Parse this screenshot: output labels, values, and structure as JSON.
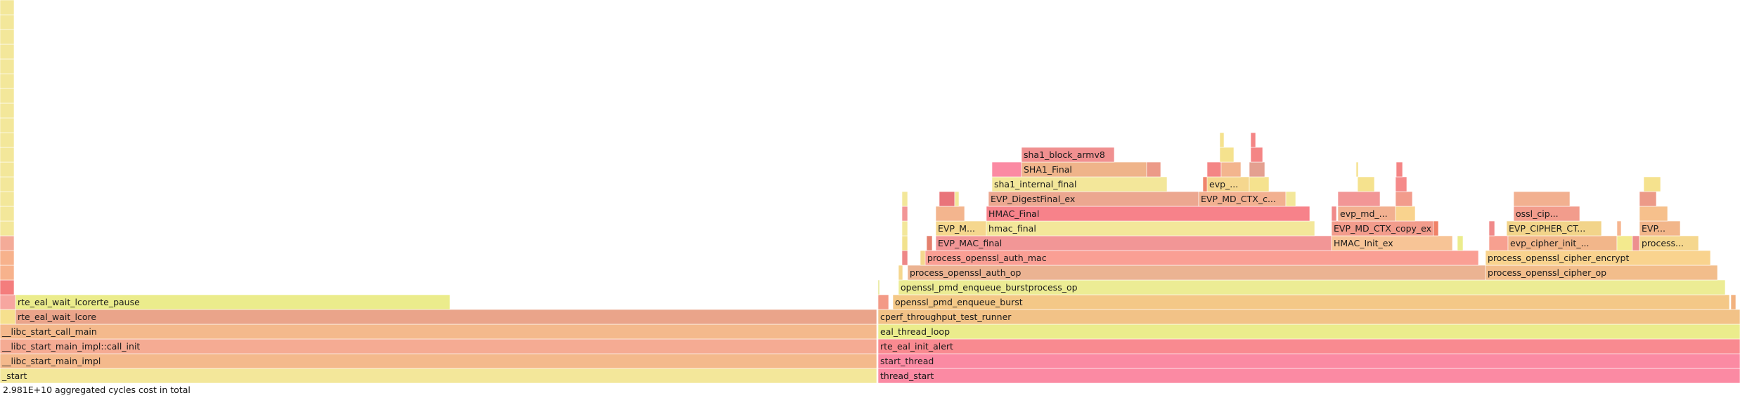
{
  "chart_data": {
    "type": "flamegraph",
    "title": "",
    "total_label": "2.981E+10 aggregated cycles cost in total",
    "max_depth": 26,
    "total_units": 2475,
    "frames": [
      {
        "depth": 0,
        "start": 0,
        "width": 1247,
        "label": "_start",
        "color": "#f3e79a"
      },
      {
        "depth": 0,
        "start": 1249,
        "width": 1226,
        "label": "thread_start",
        "color": "#fb8aa3"
      },
      {
        "depth": 1,
        "start": 0,
        "width": 1247,
        "label": "__libc_start_main_impl",
        "color": "#f4b98c"
      },
      {
        "depth": 1,
        "start": 1249,
        "width": 1226,
        "label": "start_thread",
        "color": "#fb8aa3"
      },
      {
        "depth": 2,
        "start": 0,
        "width": 1247,
        "label": "__libc_start_main_impl::call_init",
        "color": "#f5ab93"
      },
      {
        "depth": 2,
        "start": 1249,
        "width": 1226,
        "label": "rte_eal_init_alert",
        "color": "#f98a90"
      },
      {
        "depth": 3,
        "start": 0,
        "width": 1247,
        "label": "__libc_start_call_main",
        "color": "#f4b98c"
      },
      {
        "depth": 3,
        "start": 1249,
        "width": 1226,
        "label": "eal_thread_loop",
        "color": "#ebec8c"
      },
      {
        "depth": 4,
        "start": 0,
        "width": 22,
        "label": "",
        "color": "#f6e08e"
      },
      {
        "depth": 4,
        "start": 22,
        "width": 1225,
        "label": "rte_eal_wait_lcore",
        "color": "#eaa48a"
      },
      {
        "depth": 4,
        "start": 1249,
        "width": 1226,
        "label": "cperf_throughput_test_runner",
        "color": "#f2c287"
      },
      {
        "depth": 5,
        "start": 0,
        "width": 22,
        "label": "",
        "color": "#f7a6a0"
      },
      {
        "depth": 5,
        "start": 22,
        "width": 618,
        "label": "rte_eal_wait_lcorerte_pause",
        "color": "#ebec8c"
      },
      {
        "depth": 5,
        "start": 1249,
        "width": 15,
        "label": "",
        "color": "#f39a86"
      },
      {
        "depth": 5,
        "start": 1270,
        "width": 1190,
        "label": "openssl_pmd_enqueue_burst",
        "color": "#f4c887"
      },
      {
        "depth": 5,
        "start": 2462,
        "width": 7,
        "label": "",
        "color": "#f2b27f"
      },
      {
        "depth": 6,
        "start": 0,
        "width": 20,
        "label": "",
        "color": "#f47d7d"
      },
      {
        "depth": 6,
        "start": 1249,
        "width": 2,
        "label": "",
        "color": "#e4e58a"
      },
      {
        "depth": 6,
        "start": 1278,
        "width": 1176,
        "label": "openssl_pmd_enqueue_burstprocess_op",
        "color": "#ecec94"
      },
      {
        "depth": 7,
        "start": 0,
        "width": 20,
        "label": "",
        "color": "#f7b28c"
      },
      {
        "depth": 7,
        "start": 1278,
        "width": 6,
        "label": "",
        "color": "#f5d78e"
      },
      {
        "depth": 7,
        "start": 1291,
        "width": 822,
        "label": "process_openssl_auth_op",
        "color": "#ebb392"
      },
      {
        "depth": 7,
        "start": 2113,
        "width": 330,
        "label": "process_openssl_cipher_op",
        "color": "#f2bd8b"
      },
      {
        "depth": 8,
        "start": 0,
        "width": 20,
        "label": "",
        "color": "#f7b28c"
      },
      {
        "depth": 8,
        "start": 1283,
        "width": 8,
        "label": "",
        "color": "#ee8787"
      },
      {
        "depth": 8,
        "start": 1309,
        "width": 18,
        "label": "",
        "color": "#f5d78e"
      },
      {
        "depth": 8,
        "start": 1316,
        "width": 787,
        "label": "process_openssl_auth_mac",
        "color": "#fa9f94"
      },
      {
        "depth": 8,
        "start": 2113,
        "width": 320,
        "label": "process_openssl_cipher_encrypt",
        "color": "#f9d38e"
      },
      {
        "depth": 9,
        "start": 0,
        "width": 20,
        "label": "",
        "color": "#f4ab98"
      },
      {
        "depth": 9,
        "start": 1283,
        "width": 8,
        "label": "",
        "color": "#f2e28e"
      },
      {
        "depth": 9,
        "start": 1318,
        "width": 8,
        "label": "",
        "color": "#e4806e"
      },
      {
        "depth": 9,
        "start": 1331,
        "width": 563,
        "label": "EVP_MAC_final",
        "color": "#f29696"
      },
      {
        "depth": 9,
        "start": 1894,
        "width": 172,
        "label": "HMAC_Init_ex",
        "color": "#f7c496"
      },
      {
        "depth": 9,
        "start": 2073,
        "width": 8,
        "label": "",
        "color": "#ebec8c"
      },
      {
        "depth": 9,
        "start": 2118,
        "width": 27,
        "label": "",
        "color": "#f7a090"
      },
      {
        "depth": 9,
        "start": 2145,
        "width": 155,
        "label": "evp_cipher_init_internal",
        "color": "#f2b68a"
      },
      {
        "depth": 9,
        "start": 2300,
        "width": 22,
        "label": "",
        "color": "#f3ea8e"
      },
      {
        "depth": 9,
        "start": 2322,
        "width": 10,
        "label": "",
        "color": "#ed8f8f"
      },
      {
        "depth": 9,
        "start": 2332,
        "width": 84,
        "label": "process_o...",
        "color": "#f5d78e"
      },
      {
        "depth": 10,
        "start": 0,
        "width": 20,
        "label": "",
        "color": "#f3e79a"
      },
      {
        "depth": 10,
        "start": 1283,
        "width": 8,
        "label": "",
        "color": "#f3e79a"
      },
      {
        "depth": 10,
        "start": 1331,
        "width": 72,
        "label": "EVP_MA...",
        "color": "#f5d78e"
      },
      {
        "depth": 10,
        "start": 1403,
        "width": 467,
        "label": "hmac_final",
        "color": "#f3e79a"
      },
      {
        "depth": 10,
        "start": 1894,
        "width": 145,
        "label": "EVP_MD_CTX_copy_ex",
        "color": "#f29c8c"
      },
      {
        "depth": 10,
        "start": 2039,
        "width": 7,
        "label": "",
        "color": "#f08268"
      },
      {
        "depth": 10,
        "start": 2118,
        "width": 8,
        "label": "",
        "color": "#f08a8a"
      },
      {
        "depth": 10,
        "start": 2143,
        "width": 135,
        "label": "EVP_CIPHER_CT...",
        "color": "#f2d48a"
      },
      {
        "depth": 10,
        "start": 2300,
        "width": 6,
        "label": "",
        "color": "#f6b58f"
      },
      {
        "depth": 10,
        "start": 2332,
        "width": 58,
        "label": "EVP_E...",
        "color": "#f2b68a"
      },
      {
        "depth": 11,
        "start": 0,
        "width": 20,
        "label": "",
        "color": "#f3e79a"
      },
      {
        "depth": 11,
        "start": 1283,
        "width": 8,
        "label": "",
        "color": "#f29696"
      },
      {
        "depth": 11,
        "start": 1331,
        "width": 41,
        "label": "",
        "color": "#f3b58e"
      },
      {
        "depth": 11,
        "start": 1403,
        "width": 460,
        "label": "HMAC_Final",
        "color": "#f7828a"
      },
      {
        "depth": 11,
        "start": 1894,
        "width": 7,
        "label": "",
        "color": "#f08a8a"
      },
      {
        "depth": 11,
        "start": 1903,
        "width": 82,
        "label": "evp_md_c...",
        "color": "#f2b090"
      },
      {
        "depth": 11,
        "start": 1985,
        "width": 28,
        "label": "",
        "color": "#f9d38e"
      },
      {
        "depth": 11,
        "start": 2153,
        "width": 94,
        "label": "ossl_ciphe...",
        "color": "#f29c8c"
      },
      {
        "depth": 11,
        "start": 2332,
        "width": 40,
        "label": "",
        "color": "#f6c08c"
      },
      {
        "depth": 12,
        "start": 0,
        "width": 20,
        "label": "",
        "color": "#f3e79a"
      },
      {
        "depth": 12,
        "start": 1283,
        "width": 8,
        "label": "",
        "color": "#f3e79a"
      },
      {
        "depth": 12,
        "start": 1336,
        "width": 22,
        "label": "",
        "color": "#e9747a"
      },
      {
        "depth": 12,
        "start": 1358,
        "width": 6,
        "label": "",
        "color": "#f3e79a"
      },
      {
        "depth": 12,
        "start": 1406,
        "width": 299,
        "label": "EVP_DigestFinal_ex",
        "color": "#eca790"
      },
      {
        "depth": 12,
        "start": 1705,
        "width": 124,
        "label": "EVP_MD_CTX_co...",
        "color": "#f2b090"
      },
      {
        "depth": 12,
        "start": 1829,
        "width": 14,
        "label": "",
        "color": "#f3e79a"
      },
      {
        "depth": 12,
        "start": 1903,
        "width": 60,
        "label": "",
        "color": "#f29696"
      },
      {
        "depth": 12,
        "start": 1985,
        "width": 24,
        "label": "",
        "color": "#f29c8c"
      },
      {
        "depth": 12,
        "start": 2153,
        "width": 80,
        "label": "",
        "color": "#f2b090"
      },
      {
        "depth": 12,
        "start": 2332,
        "width": 24,
        "label": "",
        "color": "#ec9a88"
      },
      {
        "depth": 13,
        "start": 0,
        "width": 20,
        "label": "",
        "color": "#f3e79a"
      },
      {
        "depth": 13,
        "start": 1411,
        "width": 249,
        "label": "sha1_internal_final",
        "color": "#f3e79a"
      },
      {
        "depth": 13,
        "start": 1711,
        "width": 8,
        "label": "",
        "color": "#f0856c"
      },
      {
        "depth": 13,
        "start": 1717,
        "width": 60,
        "label": "evp_...",
        "color": "#f5d78e"
      },
      {
        "depth": 13,
        "start": 1777,
        "width": 28,
        "label": "",
        "color": "#f5e28e"
      },
      {
        "depth": 13,
        "start": 1931,
        "width": 24,
        "label": "",
        "color": "#f5e28e"
      },
      {
        "depth": 13,
        "start": 1985,
        "width": 16,
        "label": "",
        "color": "#f58a8a"
      },
      {
        "depth": 13,
        "start": 2338,
        "width": 24,
        "label": "",
        "color": "#f5e28e"
      },
      {
        "depth": 14,
        "start": 0,
        "width": 20,
        "label": "",
        "color": "#f3e79a"
      },
      {
        "depth": 14,
        "start": 1411,
        "width": 42,
        "label": "",
        "color": "#fb8aa3"
      },
      {
        "depth": 14,
        "start": 1453,
        "width": 178,
        "label": "SHA1_Final",
        "color": "#efb48a"
      },
      {
        "depth": 14,
        "start": 1631,
        "width": 20,
        "label": "",
        "color": "#ec9a88"
      },
      {
        "depth": 14,
        "start": 1717,
        "width": 20,
        "label": "",
        "color": "#f48585"
      },
      {
        "depth": 14,
        "start": 1737,
        "width": 28,
        "label": "",
        "color": "#f3b58e"
      },
      {
        "depth": 14,
        "start": 1777,
        "width": 22,
        "label": "",
        "color": "#e4a090"
      },
      {
        "depth": 14,
        "start": 1929,
        "width": 3,
        "label": "",
        "color": "#f5e28e"
      },
      {
        "depth": 14,
        "start": 1986,
        "width": 9,
        "label": "",
        "color": "#f48585"
      },
      {
        "depth": 15,
        "start": 0,
        "width": 20,
        "label": "",
        "color": "#f3e79a"
      },
      {
        "depth": 15,
        "start": 1453,
        "width": 132,
        "label": "sha1_block_armv8",
        "color": "#f09090"
      },
      {
        "depth": 15,
        "start": 1735,
        "width": 20,
        "label": "",
        "color": "#f5e28e"
      },
      {
        "depth": 15,
        "start": 1779,
        "width": 17,
        "label": "",
        "color": "#f48585"
      },
      {
        "depth": 16,
        "start": 0,
        "width": 20,
        "label": "",
        "color": "#f3e79a"
      },
      {
        "depth": 16,
        "start": 1735,
        "width": 6,
        "label": "",
        "color": "#f5e28e"
      },
      {
        "depth": 16,
        "start": 1779,
        "width": 7,
        "label": "",
        "color": "#f48585"
      },
      {
        "depth": 17,
        "start": 0,
        "width": 20,
        "label": "",
        "color": "#f3e79a"
      },
      {
        "depth": 18,
        "start": 0,
        "width": 20,
        "label": "",
        "color": "#f3e79a"
      },
      {
        "depth": 19,
        "start": 0,
        "width": 20,
        "label": "",
        "color": "#f3e79a"
      },
      {
        "depth": 20,
        "start": 0,
        "width": 20,
        "label": "",
        "color": "#f3e79a"
      },
      {
        "depth": 21,
        "start": 0,
        "width": 20,
        "label": "",
        "color": "#f3e79a"
      },
      {
        "depth": 22,
        "start": 0,
        "width": 20,
        "label": "",
        "color": "#f3e79a"
      },
      {
        "depth": 23,
        "start": 0,
        "width": 20,
        "label": "",
        "color": "#f3e79a"
      },
      {
        "depth": 24,
        "start": 0,
        "width": 20,
        "label": "",
        "color": "#f3e79a"
      },
      {
        "depth": 25,
        "start": 0,
        "width": 20,
        "label": "",
        "color": "#f3e79a"
      }
    ]
  }
}
